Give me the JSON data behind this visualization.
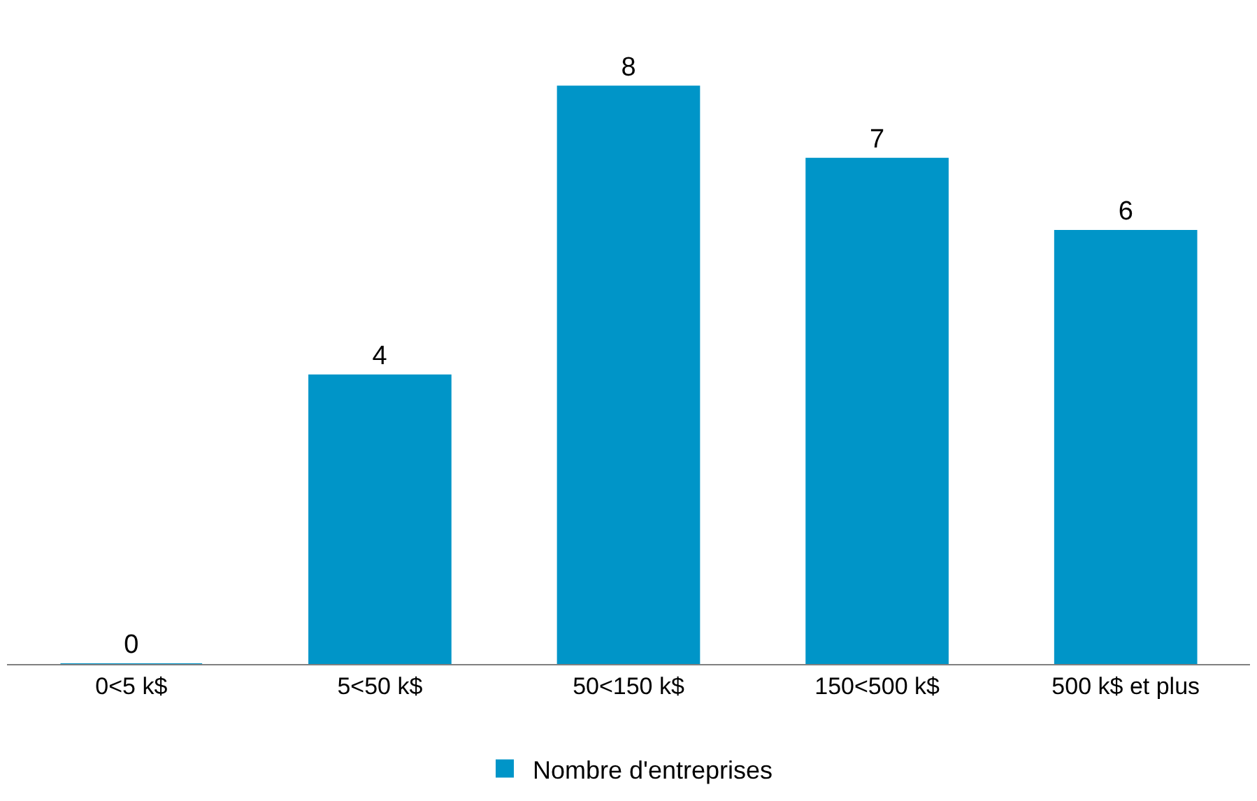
{
  "chart_data": {
    "type": "bar",
    "categories": [
      "0<5 k$",
      "5<50 k$",
      "50<150 k$",
      "150<500 k$",
      "500 k$ et plus"
    ],
    "series": [
      {
        "name": "Nombre d'entreprises",
        "color": "#0095c8",
        "values": [
          0,
          4,
          8,
          7,
          6
        ]
      }
    ],
    "data_labels": true,
    "legend": "bottom"
  }
}
